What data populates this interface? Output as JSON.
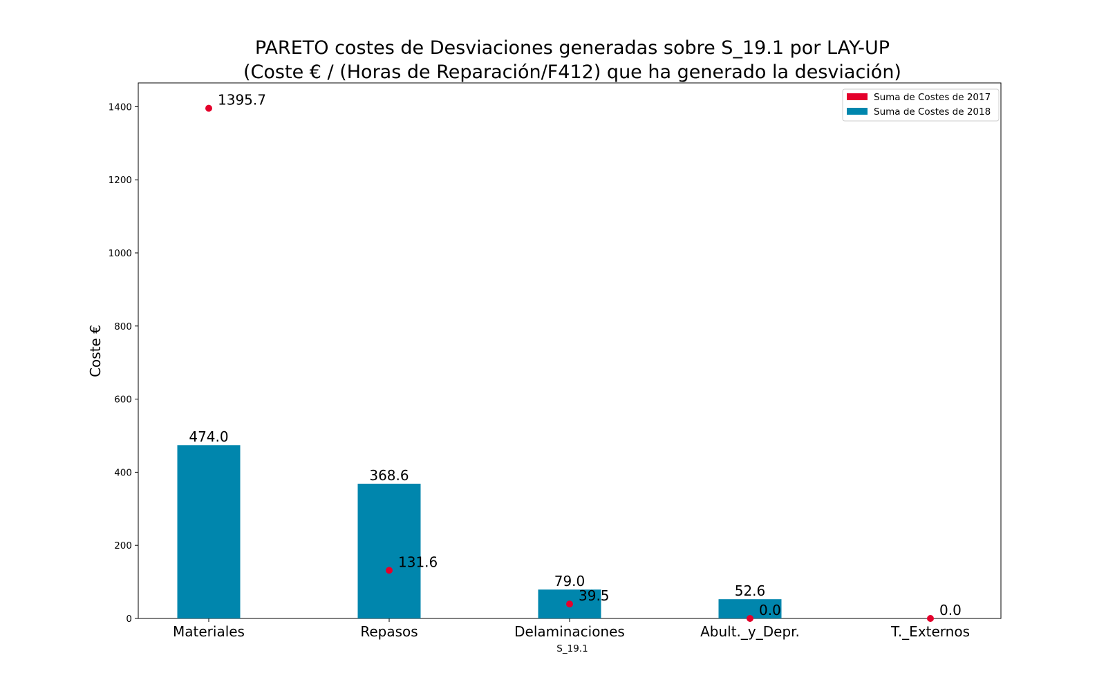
{
  "chart_data": {
    "type": "bar",
    "title_line1": "PARETO costes de Desviaciones  generadas  sobre S_19.1 por LAY-UP",
    "title_line2": "(Coste € / (Horas de Reparación/F412) que ha generado la desviación)",
    "xlabel": "S_19.1",
    "ylabel": "Coste €",
    "ylim": [
      0,
      1465
    ],
    "yticks": [
      0,
      200,
      400,
      600,
      800,
      1000,
      1200,
      1400
    ],
    "categories": [
      "Materiales",
      "Repasos",
      "Delaminaciones",
      "Abult._y_Depr.",
      "T._Externos"
    ],
    "series": [
      {
        "name": "Suma de Costes de 2018",
        "kind": "bar",
        "color": "#0086ad",
        "values": [
          474.0,
          368.6,
          79.0,
          52.6,
          0.0
        ],
        "labels": [
          "474.0",
          "368.6",
          "79.0",
          "52.6",
          ""
        ]
      },
      {
        "name": "Suma de Costes de 2017",
        "kind": "scatter",
        "color": "#e4002b",
        "values": [
          1395.7,
          131.6,
          39.5,
          0.0,
          0.0
        ],
        "labels": [
          "1395.7",
          "131.6",
          "39.5",
          "0.0",
          "0.0"
        ]
      }
    ],
    "legend": {
      "position": "top-right",
      "entries": [
        "Suma de Costes de 2017",
        "Suma de Costes de 2018"
      ],
      "colors": [
        "#e4002b",
        "#0086ad"
      ]
    },
    "grid": false
  }
}
